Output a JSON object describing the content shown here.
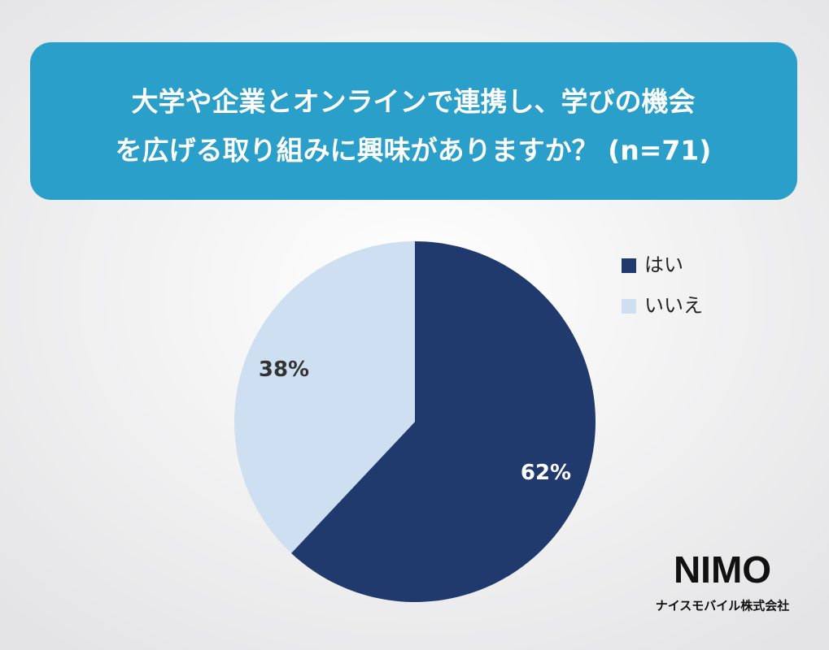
{
  "chart_data": {
    "type": "pie",
    "title": [
      "大学や企業とオンラインで連携し、学びの機会",
      "を広げる取り組みに興味がありますか？ (n=71)"
    ],
    "categories": [
      "はい",
      "いいえ"
    ],
    "values": [
      62,
      38
    ],
    "value_labels": [
      "62%",
      "38%"
    ],
    "colors": [
      "#213a6e",
      "#cddff0"
    ],
    "legend": "upper right"
  },
  "logo": {
    "name": "NIMO",
    "company": "ナイスモバイル株式会社"
  }
}
